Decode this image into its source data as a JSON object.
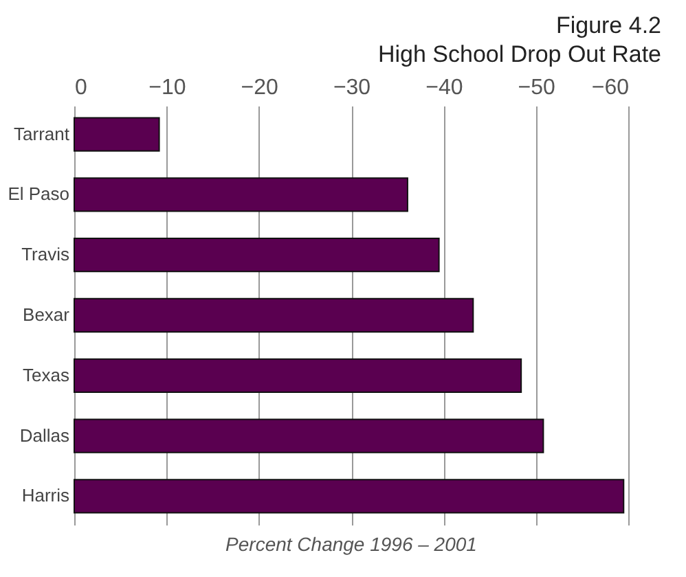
{
  "chart_data": {
    "type": "bar",
    "orientation": "horizontal",
    "title": "Figure 4.2",
    "subtitle": "High School Drop Out Rate",
    "xlabel": "Percent Change 1996 – 2001",
    "categories": [
      "Tarrant",
      "El Paso",
      "Travis",
      "Bexar",
      "Texas",
      "Dallas",
      "Harris"
    ],
    "values": [
      -9.2,
      -36.1,
      -39.5,
      -43.2,
      -48.4,
      -50.8,
      -59.5
    ],
    "color": "#5a0050",
    "xlim": [
      0,
      -60
    ],
    "xticks": [
      0,
      -10,
      -20,
      -30,
      -40,
      -50,
      -60
    ],
    "grid": "x"
  }
}
